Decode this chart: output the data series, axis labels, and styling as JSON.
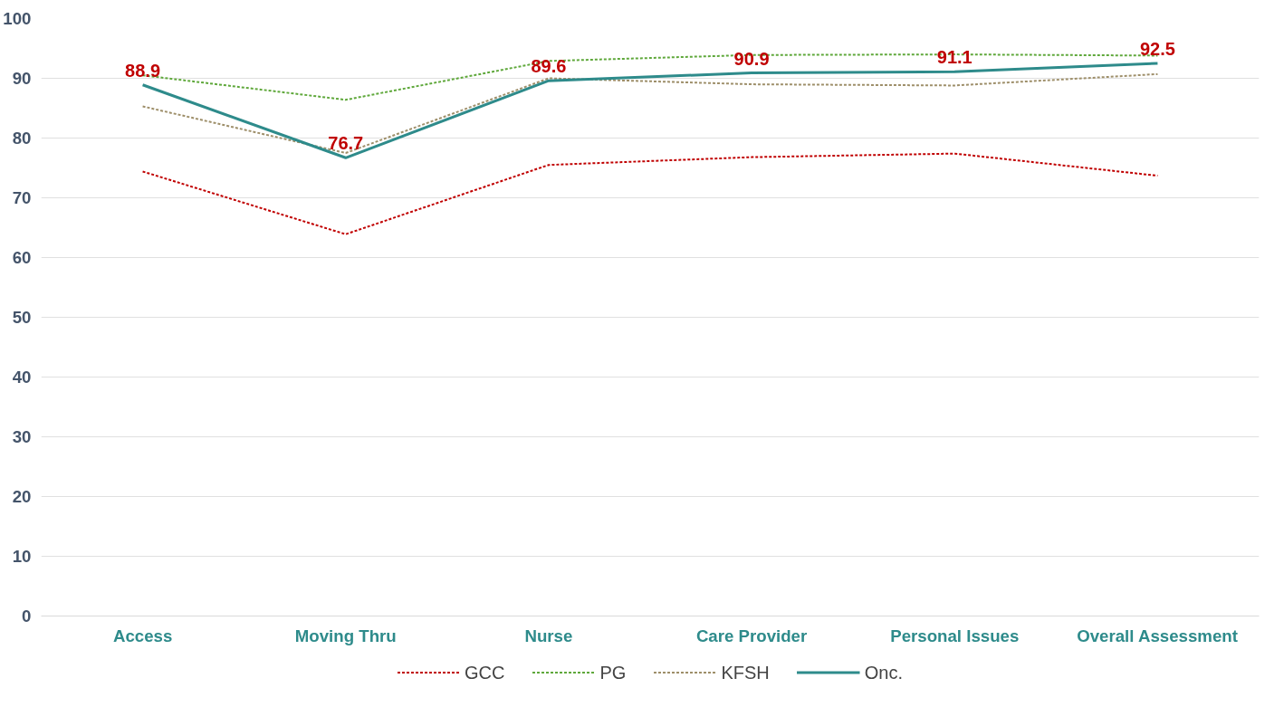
{
  "chart_data": {
    "type": "line",
    "categories": [
      "Access",
      "Moving Thru",
      "Nurse",
      "Care Provider",
      "Personal Issues",
      "Overall Assessment"
    ],
    "series": [
      {
        "name": "GCC",
        "color": "#c00000",
        "line_style": "dashed",
        "values": [
          74.4,
          63.9,
          75.5,
          76.8,
          77.4,
          73.7
        ]
      },
      {
        "name": "PG",
        "color": "#5fa83b",
        "line_style": "dashed",
        "values": [
          90.5,
          86.4,
          92.9,
          93.9,
          94.0,
          93.8
        ]
      },
      {
        "name": "KFSH",
        "color": "#9e8f6a",
        "line_style": "dashed",
        "values": [
          85.3,
          77.5,
          90.0,
          89.0,
          88.8,
          90.7
        ]
      },
      {
        "name": "Onc.",
        "color": "#2e8b8b",
        "line_style": "solid",
        "values": [
          88.9,
          76.7,
          89.6,
          90.9,
          91.1,
          92.5
        ],
        "value_labels": [
          "88.9",
          "76.7",
          "89.6",
          "90.9",
          "91.1",
          "92.5"
        ]
      }
    ],
    "ylim": [
      0,
      100
    ],
    "yticks": [
      0,
      10,
      20,
      30,
      40,
      50,
      60,
      70,
      80,
      90,
      100
    ],
    "grid": "y",
    "legend": "bottom"
  }
}
